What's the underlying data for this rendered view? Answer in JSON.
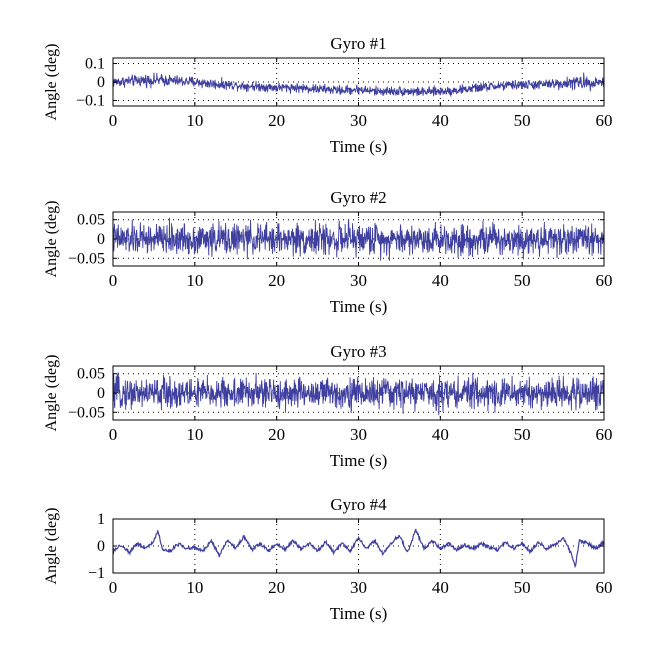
{
  "chart_data": [
    {
      "type": "line",
      "title": "Gyro #1",
      "xlabel": "Time (s)",
      "ylabel": "Angle (deg)",
      "xlim": [
        0,
        60
      ],
      "ylim": [
        -0.13,
        0.13
      ],
      "xticks": [
        0,
        10,
        20,
        30,
        40,
        50,
        60
      ],
      "yticks": [
        0.1,
        0,
        -0.1
      ],
      "ytick_labels": [
        "0.1",
        "0",
        "−0.1"
      ],
      "grid": true,
      "signal": "noise",
      "series": [
        {
          "color": "#3f3fa0",
          "x": [
            0,
            2,
            4,
            6,
            8,
            10,
            12,
            14,
            16,
            18,
            20,
            22,
            24,
            26,
            28,
            30,
            32,
            34,
            36,
            38,
            40,
            42,
            44,
            46,
            48,
            50,
            52,
            54,
            56,
            58,
            60
          ],
          "center": [
            0,
            0.005,
            0.01,
            0.01,
            0.005,
            0,
            -0.01,
            -0.015,
            -0.02,
            -0.025,
            -0.03,
            -0.03,
            -0.035,
            -0.04,
            -0.045,
            -0.04,
            -0.05,
            -0.05,
            -0.05,
            -0.055,
            -0.05,
            -0.045,
            -0.035,
            -0.025,
            -0.02,
            -0.015,
            -0.015,
            -0.01,
            -0.005,
            0,
            0
          ],
          "amplitude": [
            0.04,
            0.04,
            0.045,
            0.045,
            0.04,
            0.04,
            0.04,
            0.035,
            0.035,
            0.035,
            0.035,
            0.035,
            0.035,
            0.035,
            0.035,
            0.035,
            0.035,
            0.035,
            0.035,
            0.035,
            0.035,
            0.035,
            0.035,
            0.035,
            0.035,
            0.035,
            0.035,
            0.035,
            0.05,
            0.055,
            0.04
          ]
        }
      ]
    },
    {
      "type": "line",
      "title": "Gyro #2",
      "xlabel": "Time (s)",
      "ylabel": "Angle (deg)",
      "xlim": [
        0,
        60
      ],
      "ylim": [
        -0.07,
        0.07
      ],
      "xticks": [
        0,
        10,
        20,
        30,
        40,
        50,
        60
      ],
      "yticks": [
        0.05,
        0,
        -0.05
      ],
      "ytick_labels": [
        "0.05",
        "0",
        "−0.05"
      ],
      "grid": true,
      "signal": "noise",
      "series": [
        {
          "color": "#3f3fa0",
          "x": [
            0,
            60
          ],
          "center": [
            0,
            0
          ],
          "amplitude": [
            0.055,
            0.055
          ]
        }
      ]
    },
    {
      "type": "line",
      "title": "Gyro #3",
      "xlabel": "Time (s)",
      "ylabel": "Angle (deg)",
      "xlim": [
        0,
        60
      ],
      "ylim": [
        -0.07,
        0.07
      ],
      "xticks": [
        0,
        10,
        20,
        30,
        40,
        50,
        60
      ],
      "yticks": [
        0.05,
        0,
        -0.05
      ],
      "ytick_labels": [
        "0.05",
        "0",
        "−0.05"
      ],
      "grid": true,
      "signal": "noise",
      "series": [
        {
          "color": "#3f3fa0",
          "x": [
            0,
            60
          ],
          "center": [
            0,
            0
          ],
          "amplitude": [
            0.055,
            0.055
          ]
        }
      ]
    },
    {
      "type": "line",
      "title": "Gyro #4",
      "xlabel": "Time (s)",
      "ylabel": "Angle (deg)",
      "xlim": [
        0,
        60
      ],
      "ylim": [
        -1,
        1
      ],
      "xticks": [
        0,
        10,
        20,
        30,
        40,
        50,
        60
      ],
      "yticks": [
        1,
        0,
        -1
      ],
      "ytick_labels": [
        "1",
        "0",
        "−1"
      ],
      "grid": true,
      "signal": "wander",
      "series": [
        {
          "color": "#3f3fa0",
          "x": [
            0,
            1,
            2,
            3,
            4,
            5,
            5.5,
            6,
            7,
            8,
            9,
            10,
            11,
            12,
            13,
            14,
            15,
            16,
            17,
            18,
            19,
            20,
            21,
            22,
            23,
            24,
            25,
            26,
            27,
            28,
            29,
            30,
            31,
            32,
            33,
            34,
            35,
            36,
            37,
            38,
            39,
            40,
            41,
            42,
            43,
            44,
            45,
            46,
            47,
            48,
            49,
            50,
            51,
            52,
            53,
            54,
            55,
            56,
            56.5,
            57,
            58,
            59,
            60
          ],
          "y": [
            -0.2,
            0.05,
            -0.25,
            0.1,
            -0.1,
            0.2,
            0.6,
            -0.1,
            -0.2,
            0.1,
            -0.1,
            -0.05,
            -0.2,
            0.2,
            -0.35,
            0.25,
            -0.1,
            0.35,
            -0.15,
            0.1,
            -0.2,
            0.1,
            -0.15,
            0.2,
            -0.1,
            0.1,
            -0.2,
            0.15,
            -0.25,
            0.1,
            -0.2,
            0.3,
            -0.1,
            0.2,
            -0.3,
            0.1,
            0.4,
            -0.25,
            0.6,
            -0.1,
            0.2,
            -0.1,
            0.1,
            -0.15,
            0.05,
            -0.1,
            0.1,
            -0.05,
            -0.15,
            0.15,
            -0.1,
            0.1,
            -0.2,
            0.15,
            -0.1,
            0.05,
            0.3,
            -0.3,
            -0.75,
            0.2,
            0.1,
            -0.1,
            0.15
          ]
        }
      ]
    }
  ]
}
